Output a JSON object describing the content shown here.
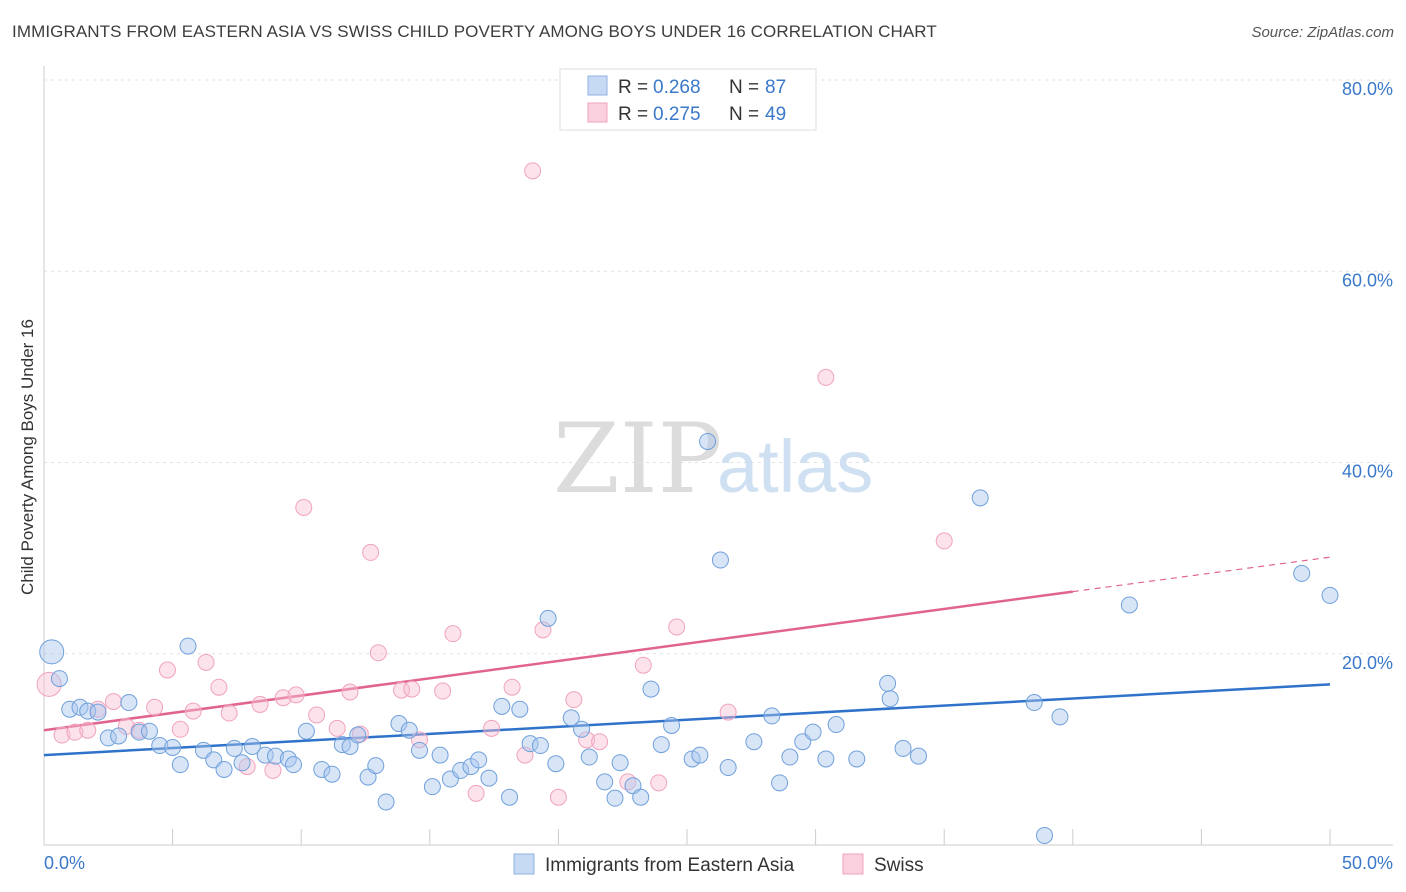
{
  "title": "IMMIGRANTS FROM EASTERN ASIA VS SWISS CHILD POVERTY AMONG BOYS UNDER 16 CORRELATION CHART",
  "source": "Source: ZipAtlas.com",
  "watermark": {
    "zip": "ZIP",
    "atlas": "atlas"
  },
  "colors": {
    "blue": "#6fa0dc",
    "blue_line": "#2f72c9",
    "pink": "#f3a6bf",
    "pink_line": "#e0648f",
    "tick": "#3a78c9"
  },
  "legend": {
    "rows": [
      {
        "r_label": "R =",
        "r_value": "0.268",
        "n_label": "N =",
        "n_value": "87"
      },
      {
        "r_label": "R =",
        "r_value": "0.275",
        "n_label": "N =",
        "n_value": "49"
      }
    ]
  },
  "chart_data": {
    "type": "scatter",
    "title": "IMMIGRANTS FROM EASTERN ASIA VS SWISS CHILD POVERTY AMONG BOYS UNDER 16 CORRELATION CHART",
    "xlabel": "",
    "ylabel": "Child Poverty Among Boys Under 16",
    "xlim": [
      0,
      50
    ],
    "ylim": [
      0,
      80
    ],
    "x_tick_labels": [
      "0.0%",
      "50.0%"
    ],
    "y_tick_labels": [
      "20.0%",
      "40.0%",
      "60.0%",
      "80.0%"
    ],
    "y_ticks": [
      20,
      40,
      60,
      80
    ],
    "grid": true,
    "legend_position": "top-center",
    "series": [
      {
        "name": "Immigrants from Eastern Asia",
        "color": "#6fa0dc",
        "r": 0.268,
        "n": 87,
        "trend": {
          "x0": 0,
          "y0": 9.4,
          "x1": 50,
          "y1": 16.8
        },
        "points": [
          [
            0.3,
            20.2
          ],
          [
            0.6,
            17.4
          ],
          [
            1.0,
            14.2
          ],
          [
            1.4,
            14.4
          ],
          [
            1.7,
            14.0
          ],
          [
            2.1,
            13.9
          ],
          [
            2.5,
            11.2
          ],
          [
            2.9,
            11.4
          ],
          [
            3.3,
            14.9
          ],
          [
            3.7,
            11.8
          ],
          [
            4.1,
            11.9
          ],
          [
            4.5,
            10.4
          ],
          [
            5.0,
            10.2
          ],
          [
            5.3,
            8.4
          ],
          [
            5.6,
            20.8
          ],
          [
            6.2,
            9.9
          ],
          [
            6.6,
            8.9
          ],
          [
            7.0,
            7.9
          ],
          [
            7.4,
            10.1
          ],
          [
            7.7,
            8.6
          ],
          [
            8.1,
            10.3
          ],
          [
            8.6,
            9.4
          ],
          [
            9.0,
            9.3
          ],
          [
            9.5,
            9.0
          ],
          [
            9.7,
            8.4
          ],
          [
            10.2,
            11.9
          ],
          [
            10.8,
            7.9
          ],
          [
            11.2,
            7.4
          ],
          [
            11.6,
            10.5
          ],
          [
            11.9,
            10.3
          ],
          [
            12.2,
            11.5
          ],
          [
            12.6,
            7.1
          ],
          [
            12.9,
            8.3
          ],
          [
            13.3,
            4.5
          ],
          [
            13.8,
            12.7
          ],
          [
            14.2,
            12.0
          ],
          [
            14.6,
            9.9
          ],
          [
            15.1,
            6.1
          ],
          [
            15.4,
            9.4
          ],
          [
            15.8,
            6.9
          ],
          [
            16.2,
            7.8
          ],
          [
            16.6,
            8.2
          ],
          [
            16.9,
            8.9
          ],
          [
            17.3,
            7.0
          ],
          [
            17.8,
            14.5
          ],
          [
            18.1,
            5.0
          ],
          [
            18.5,
            14.2
          ],
          [
            18.9,
            10.6
          ],
          [
            19.3,
            10.4
          ],
          [
            19.6,
            23.7
          ],
          [
            19.9,
            8.5
          ],
          [
            20.5,
            13.3
          ],
          [
            20.9,
            12.1
          ],
          [
            21.2,
            9.2
          ],
          [
            21.8,
            6.6
          ],
          [
            22.2,
            4.9
          ],
          [
            22.4,
            8.6
          ],
          [
            22.9,
            6.2
          ],
          [
            23.2,
            5.0
          ],
          [
            23.6,
            16.3
          ],
          [
            24.0,
            10.5
          ],
          [
            24.4,
            12.5
          ],
          [
            25.2,
            9.0
          ],
          [
            25.5,
            9.4
          ],
          [
            25.8,
            42.2
          ],
          [
            26.3,
            29.8
          ],
          [
            26.6,
            8.1
          ],
          [
            27.6,
            10.8
          ],
          [
            28.3,
            13.5
          ],
          [
            28.6,
            6.5
          ],
          [
            29.0,
            9.2
          ],
          [
            29.5,
            10.8
          ],
          [
            29.9,
            11.8
          ],
          [
            30.4,
            9.0
          ],
          [
            30.8,
            12.6
          ],
          [
            31.6,
            9.0
          ],
          [
            32.8,
            16.9
          ],
          [
            32.9,
            15.3
          ],
          [
            33.4,
            10.1
          ],
          [
            34.0,
            9.3
          ],
          [
            36.4,
            36.3
          ],
          [
            38.5,
            14.9
          ],
          [
            38.9,
            1.0
          ],
          [
            39.5,
            13.4
          ],
          [
            42.2,
            25.1
          ],
          [
            48.9,
            28.4
          ],
          [
            50.0,
            26.1
          ]
        ]
      },
      {
        "name": "Swiss",
        "color": "#f3a6bf",
        "r": 0.275,
        "n": 49,
        "trend": {
          "x0": 0,
          "y0": 12.0,
          "x1": 40,
          "y1": 26.5,
          "dash_x1": 50,
          "dash_y1": 30.1
        },
        "points": [
          [
            0.2,
            16.8
          ],
          [
            0.7,
            11.5
          ],
          [
            1.2,
            11.8
          ],
          [
            1.7,
            12.0
          ],
          [
            2.1,
            14.2
          ],
          [
            2.7,
            15.0
          ],
          [
            3.2,
            12.4
          ],
          [
            3.7,
            12.0
          ],
          [
            4.3,
            14.4
          ],
          [
            4.8,
            18.3
          ],
          [
            5.3,
            12.1
          ],
          [
            5.8,
            14.0
          ],
          [
            6.3,
            19.1
          ],
          [
            6.8,
            16.5
          ],
          [
            7.2,
            13.8
          ],
          [
            7.9,
            8.2
          ],
          [
            8.4,
            14.7
          ],
          [
            8.9,
            7.8
          ],
          [
            9.3,
            15.4
          ],
          [
            9.8,
            15.7
          ],
          [
            10.1,
            35.3
          ],
          [
            10.6,
            13.6
          ],
          [
            11.4,
            12.2
          ],
          [
            11.9,
            16.0
          ],
          [
            12.3,
            11.6
          ],
          [
            12.7,
            30.6
          ],
          [
            13.0,
            20.1
          ],
          [
            13.9,
            16.2
          ],
          [
            14.3,
            16.3
          ],
          [
            14.6,
            11.0
          ],
          [
            15.5,
            16.1
          ],
          [
            15.9,
            22.1
          ],
          [
            16.8,
            5.4
          ],
          [
            17.4,
            12.2
          ],
          [
            18.2,
            16.5
          ],
          [
            18.7,
            9.4
          ],
          [
            19.0,
            70.5
          ],
          [
            19.4,
            22.5
          ],
          [
            20.0,
            5.0
          ],
          [
            20.6,
            15.2
          ],
          [
            21.1,
            11.0
          ],
          [
            21.6,
            10.8
          ],
          [
            22.7,
            6.6
          ],
          [
            23.3,
            18.8
          ],
          [
            23.9,
            6.5
          ],
          [
            24.6,
            22.8
          ],
          [
            26.6,
            13.9
          ],
          [
            30.4,
            48.9
          ],
          [
            35.0,
            31.8
          ]
        ]
      }
    ]
  },
  "bottom_legend": [
    {
      "label": "Immigrants from Eastern Asia",
      "color": "#6fa0dc"
    },
    {
      "label": "Swiss",
      "color": "#f3a6bf"
    }
  ]
}
